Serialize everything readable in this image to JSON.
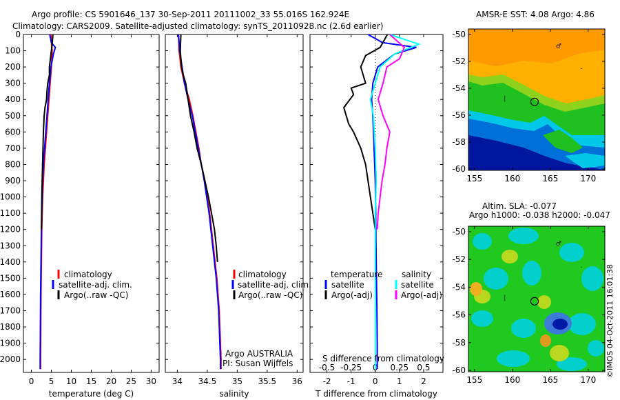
{
  "title_line1": "Argo profile: CS 5901646_137 30-Sep-2011 20111002_33 55.016S 162.924E",
  "title_line2": "Climatology: CARS2009. Satellite-adjusted climatology: synTS_20110928.nc (2.6d earlier)",
  "meta": {
    "argo_program": "Argo AUSTRALIA",
    "pi": "PI: Susan Wijffels",
    "credit": "©IMOS 04-Oct-2011 16:01:38"
  },
  "colors": {
    "red": "#ff0000",
    "blue": "#0000ff",
    "black": "#000000",
    "cyan": "#00ffff",
    "magenta": "#ff00ff"
  },
  "chart_data": [
    {
      "type": "line",
      "xlabel": "temperature (deg C)",
      "ylim": [
        2080,
        0
      ],
      "xlim": [
        -2,
        32
      ],
      "xticks": [
        "0",
        "5",
        "10",
        "15",
        "20",
        "25",
        "30"
      ],
      "yticks": [
        "0",
        "100",
        "200",
        "300",
        "400",
        "500",
        "600",
        "700",
        "800",
        "900",
        "1000",
        "1100",
        "1200",
        "1300",
        "1400",
        "1500",
        "1600",
        "1700",
        "1800",
        "1900",
        "2000"
      ],
      "legend": [
        "climatology",
        "satellite-adj. clim.",
        "Argo(..raw -QC)"
      ],
      "series": [
        {
          "name": "climatology",
          "color": "#ff0000",
          "points": [
            [
              4.9,
              0
            ],
            [
              5.0,
              50
            ],
            [
              5.2,
              100
            ],
            [
              5.0,
              200
            ],
            [
              4.7,
              300
            ],
            [
              4.4,
              400
            ],
            [
              4.1,
              500
            ],
            [
              3.8,
              600
            ],
            [
              3.5,
              700
            ],
            [
              3.2,
              800
            ],
            [
              3.0,
              900
            ],
            [
              2.8,
              1000
            ],
            [
              2.6,
              1200
            ],
            [
              2.5,
              1400
            ],
            [
              2.4,
              1600
            ],
            [
              2.35,
              1800
            ],
            [
              2.3,
              2000
            ],
            [
              2.3,
              2060
            ]
          ]
        },
        {
          "name": "satellite-adj. clim.",
          "color": "#0000ff",
          "points": [
            [
              4.6,
              0
            ],
            [
              5.0,
              50
            ],
            [
              6.0,
              80
            ],
            [
              5.5,
              120
            ],
            [
              4.9,
              200
            ],
            [
              4.5,
              300
            ],
            [
              4.2,
              400
            ],
            [
              3.9,
              500
            ],
            [
              3.6,
              600
            ],
            [
              3.3,
              700
            ],
            [
              3.0,
              800
            ],
            [
              2.8,
              900
            ],
            [
              2.7,
              1000
            ],
            [
              2.5,
              1200
            ],
            [
              2.4,
              1400
            ],
            [
              2.3,
              1600
            ],
            [
              2.25,
              1800
            ],
            [
              2.2,
              2000
            ],
            [
              2.2,
              2060
            ]
          ]
        },
        {
          "name": "Argo(..raw -QC)",
          "color": "#000000",
          "points": [
            [
              5.4,
              0
            ],
            [
              5.2,
              60
            ],
            [
              4.9,
              120
            ],
            [
              4.5,
              200
            ],
            [
              4.5,
              250
            ],
            [
              4.1,
              300
            ],
            [
              3.9,
              350
            ],
            [
              3.8,
              400
            ],
            [
              3.4,
              450
            ],
            [
              3.2,
              500
            ],
            [
              3.0,
              600
            ],
            [
              2.9,
              700
            ],
            [
              2.8,
              800
            ],
            [
              2.7,
              900
            ],
            [
              2.6,
              1000
            ],
            [
              2.55,
              1100
            ],
            [
              2.5,
              1200
            ]
          ]
        }
      ]
    },
    {
      "type": "line",
      "xlabel": "salinity",
      "ylim": [
        2080,
        0
      ],
      "xlim": [
        33.8,
        36.1
      ],
      "xticks": [
        "34",
        "34.5",
        "35",
        "35.5",
        "36"
      ],
      "legend": [
        "climatology",
        "satellite-adj. clim.",
        "Argo(..raw -QC)"
      ],
      "series": [
        {
          "name": "climatology",
          "color": "#ff0000",
          "points": [
            [
              34.02,
              0
            ],
            [
              34.03,
              100
            ],
            [
              34.06,
              200
            ],
            [
              34.12,
              300
            ],
            [
              34.2,
              400
            ],
            [
              34.26,
              500
            ],
            [
              34.31,
              600
            ],
            [
              34.36,
              700
            ],
            [
              34.4,
              800
            ],
            [
              34.46,
              900
            ],
            [
              34.5,
              1000
            ],
            [
              34.54,
              1100
            ],
            [
              34.57,
              1200
            ],
            [
              34.6,
              1300
            ],
            [
              34.63,
              1400
            ],
            [
              34.66,
              1500
            ],
            [
              34.68,
              1600
            ],
            [
              34.7,
              1700
            ],
            [
              34.71,
              1800
            ],
            [
              34.72,
              1900
            ],
            [
              34.73,
              2000
            ],
            [
              34.73,
              2060
            ]
          ]
        },
        {
          "name": "satellite-adj. clim.",
          "color": "#0000ff",
          "points": [
            [
              34.02,
              0
            ],
            [
              34.04,
              100
            ],
            [
              34.08,
              200
            ],
            [
              34.12,
              300
            ],
            [
              34.18,
              400
            ],
            [
              34.25,
              500
            ],
            [
              34.3,
              600
            ],
            [
              34.35,
              700
            ],
            [
              34.4,
              800
            ],
            [
              34.45,
              900
            ],
            [
              34.49,
              1000
            ],
            [
              34.53,
              1100
            ],
            [
              34.56,
              1200
            ],
            [
              34.59,
              1300
            ],
            [
              34.62,
              1400
            ],
            [
              34.65,
              1500
            ],
            [
              34.67,
              1600
            ],
            [
              34.69,
              1700
            ],
            [
              34.7,
              1800
            ],
            [
              34.71,
              1900
            ],
            [
              34.72,
              2000
            ],
            [
              34.72,
              2060
            ]
          ]
        },
        {
          "name": "Argo(..raw -QC)",
          "color": "#000000",
          "points": [
            [
              34.06,
              0
            ],
            [
              34.05,
              100
            ],
            [
              34.07,
              200
            ],
            [
              34.1,
              250
            ],
            [
              34.14,
              300
            ],
            [
              34.18,
              400
            ],
            [
              34.22,
              500
            ],
            [
              34.28,
              600
            ],
            [
              34.33,
              700
            ],
            [
              34.4,
              800
            ],
            [
              34.46,
              900
            ],
            [
              34.52,
              1000
            ],
            [
              34.57,
              1100
            ],
            [
              34.62,
              1200
            ],
            [
              34.65,
              1300
            ],
            [
              34.67,
              1400
            ]
          ]
        }
      ]
    },
    {
      "type": "line",
      "xlabel": "T difference from climatology",
      "title_bottom": "S difference from climatology",
      "ylim": [
        2080,
        0
      ],
      "xlim": [
        -2.7,
        2.8
      ],
      "xticks": [
        "-2",
        "-1",
        "0",
        "1",
        "2"
      ],
      "sticks": [
        "-0.5",
        "-0.25",
        "0",
        "0.25",
        "0.5"
      ],
      "legend_titles": [
        "temperature",
        "salinity"
      ],
      "legend": [
        "satellite",
        "Argo(-adj)",
        "satellite",
        "Argo(-adj)"
      ],
      "series": [
        {
          "name": "satellite",
          "quantity": "temperature",
          "color": "#0000ff",
          "points": [
            [
              -0.3,
              0
            ],
            [
              0.3,
              50
            ],
            [
              1.7,
              80
            ],
            [
              0.8,
              120
            ],
            [
              0.1,
              200
            ],
            [
              -0.1,
              300
            ],
            [
              -0.15,
              400
            ],
            [
              -0.1,
              500
            ],
            [
              -0.05,
              700
            ],
            [
              0.0,
              900
            ],
            [
              0.02,
              1100
            ],
            [
              0.03,
              1300
            ],
            [
              0.05,
              1500
            ],
            [
              0.07,
              1700
            ],
            [
              0.08,
              1900
            ],
            [
              0.08,
              2060
            ]
          ]
        },
        {
          "name": "Argo(-adj)",
          "quantity": "temperature",
          "color": "#000000",
          "points": [
            [
              0.5,
              0
            ],
            [
              0.2,
              80
            ],
            [
              -0.4,
              130
            ],
            [
              -0.6,
              200
            ],
            [
              -0.4,
              300
            ],
            [
              -1.0,
              330
            ],
            [
              -0.9,
              370
            ],
            [
              -1.3,
              450
            ],
            [
              -1.1,
              550
            ],
            [
              -0.9,
              600
            ],
            [
              -0.6,
              700
            ],
            [
              -0.4,
              800
            ],
            [
              -0.3,
              900
            ],
            [
              -0.2,
              1000
            ],
            [
              -0.1,
              1100
            ],
            [
              0.0,
              1200
            ]
          ]
        },
        {
          "name": "satellite",
          "quantity": "salinity",
          "color": "#00ffff",
          "points": [
            [
              0.15,
              0
            ],
            [
              0.45,
              60
            ],
            [
              0.2,
              120
            ],
            [
              0.05,
              200
            ],
            [
              0.0,
              300
            ],
            [
              -0.05,
              400
            ],
            [
              -0.02,
              500
            ],
            [
              0.0,
              700
            ],
            [
              0.01,
              900
            ],
            [
              0.0,
              1100
            ],
            [
              0.0,
              1300
            ],
            [
              0.0,
              1500
            ],
            [
              0.0,
              1700
            ],
            [
              0.0,
              1900
            ],
            [
              0.0,
              2060
            ]
          ]
        },
        {
          "name": "Argo(-adj)",
          "quantity": "salinity",
          "color": "#ff00ff",
          "points": [
            [
              0.15,
              0
            ],
            [
              0.3,
              80
            ],
            [
              0.25,
              150
            ],
            [
              0.12,
              200
            ],
            [
              0.08,
              300
            ],
            [
              0.03,
              400
            ],
            [
              0.08,
              500
            ],
            [
              0.15,
              600
            ],
            [
              0.12,
              700
            ],
            [
              0.1,
              800
            ],
            [
              0.07,
              900
            ],
            [
              0.05,
              1000
            ],
            [
              0.03,
              1100
            ],
            [
              0.02,
              1200
            ]
          ]
        }
      ]
    },
    {
      "type": "heatmap",
      "title": "AMSR-E SST: 4.08 Argo: 4.86",
      "xticks": [
        "155",
        "160",
        "165",
        "170"
      ],
      "yticks": [
        "-50",
        "-52",
        "-54",
        "-56",
        "-58",
        "-60"
      ],
      "xlim": [
        154.2,
        172.2
      ],
      "ylim": [
        -60.1,
        -49.6
      ],
      "marker": [
        162.924,
        -55.016
      ]
    },
    {
      "type": "heatmap",
      "title": "Altim. SLA: -0.077",
      "subtitle": "Argo h1000: -0.038 h2000: -0.047",
      "xticks": [
        "155",
        "160",
        "165",
        "170"
      ],
      "yticks": [
        "-50",
        "-52",
        "-54",
        "-56",
        "-58",
        "-60"
      ],
      "xlim": [
        154.2,
        172.2
      ],
      "ylim": [
        -60.1,
        -49.6
      ],
      "marker": [
        162.924,
        -55.016
      ]
    }
  ]
}
